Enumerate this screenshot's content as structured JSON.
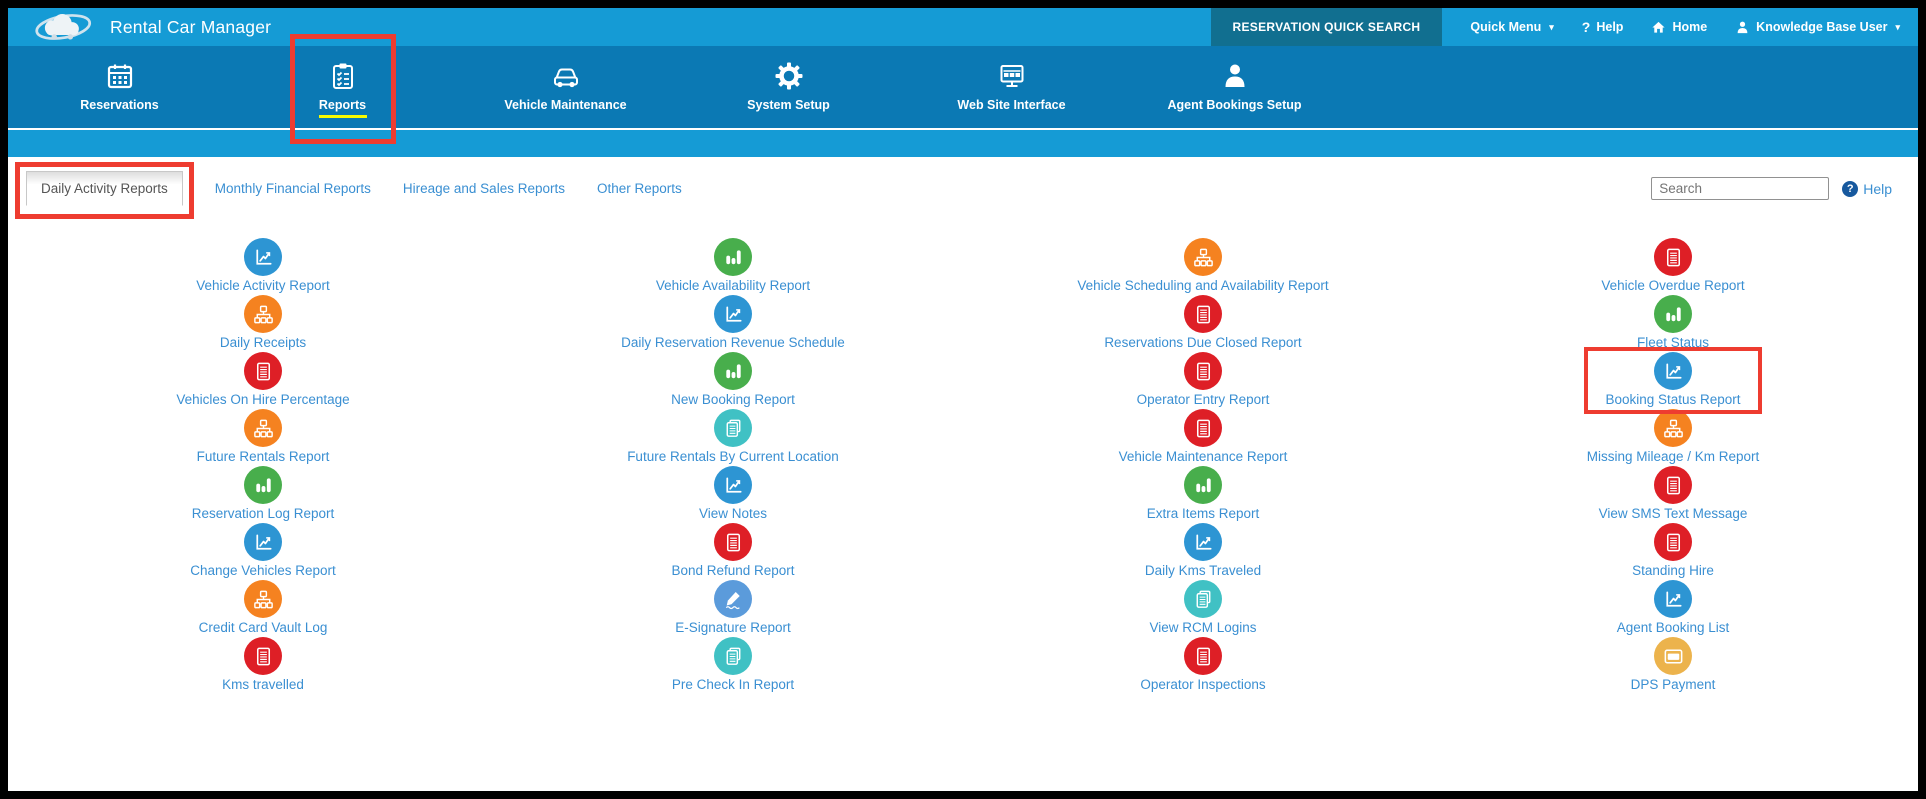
{
  "header": {
    "app_title": "Rental Car Manager",
    "quick_search_label": "RESERVATION QUICK SEARCH",
    "quick_menu_label": "Quick Menu",
    "help_label": "Help",
    "home_label": "Home",
    "user_label": "Knowledge Base User"
  },
  "nav": {
    "items": [
      {
        "label": "Reservations",
        "icon": "calendar",
        "active": false,
        "annotated": false
      },
      {
        "label": "Reports",
        "icon": "clipboard",
        "active": true,
        "annotated": true
      },
      {
        "label": "Vehicle Maintenance",
        "icon": "car",
        "active": false,
        "annotated": false
      },
      {
        "label": "System Setup",
        "icon": "gear",
        "active": false,
        "annotated": false
      },
      {
        "label": "Web Site Interface",
        "icon": "monitor",
        "active": false,
        "annotated": false
      },
      {
        "label": "Agent Bookings Setup",
        "icon": "agent",
        "active": false,
        "annotated": false
      }
    ]
  },
  "tabs": {
    "items": [
      {
        "label": "Daily Activity Reports",
        "active": true,
        "annotated": true
      },
      {
        "label": "Monthly Financial Reports",
        "active": false,
        "annotated": false
      },
      {
        "label": "Hireage and Sales Reports",
        "active": false,
        "annotated": false
      },
      {
        "label": "Other Reports",
        "active": false,
        "annotated": false
      }
    ],
    "search_placeholder": "Search",
    "help_label": "Help"
  },
  "colors": {
    "header_cyan": "#159bd5",
    "nav_blue": "#0b79b4",
    "quick_search_teal": "#116f90",
    "annotation_red": "#ee3c30",
    "active_underline_yellow": "#f8fb00",
    "link_blue": "#3a8fd2",
    "icon_blue": "#2d95d3",
    "icon_green": "#48ae4c",
    "icon_orange": "#f58220",
    "icon_red": "#de1f26",
    "icon_teal": "#40c1c4",
    "icon_lightblue": "#5b9bdb",
    "icon_amber": "#ecb34c"
  },
  "reports": [
    {
      "label": "Vehicle Activity Report",
      "icon": "line-chart",
      "color": "icon_blue",
      "annotated": false
    },
    {
      "label": "Vehicle Availability Report",
      "icon": "bar-chart",
      "color": "icon_green",
      "annotated": false
    },
    {
      "label": "Vehicle Scheduling and Availability Report",
      "icon": "sitemap",
      "color": "icon_orange",
      "annotated": false
    },
    {
      "label": "Vehicle Overdue Report",
      "icon": "document",
      "color": "icon_red",
      "annotated": false
    },
    {
      "label": "Daily Receipts",
      "icon": "sitemap",
      "color": "icon_orange",
      "annotated": false
    },
    {
      "label": "Daily Reservation Revenue Schedule",
      "icon": "line-chart",
      "color": "icon_blue",
      "annotated": false
    },
    {
      "label": "Reservations Due Closed Report",
      "icon": "document",
      "color": "icon_red",
      "annotated": false
    },
    {
      "label": "Fleet Status",
      "icon": "bar-chart",
      "color": "icon_green",
      "annotated": false
    },
    {
      "label": "Vehicles On Hire Percentage",
      "icon": "document",
      "color": "icon_red",
      "annotated": false
    },
    {
      "label": "New Booking Report",
      "icon": "bar-chart",
      "color": "icon_green",
      "annotated": false
    },
    {
      "label": "Operator Entry Report",
      "icon": "document",
      "color": "icon_red",
      "annotated": false
    },
    {
      "label": "Booking Status Report",
      "icon": "line-chart",
      "color": "icon_blue",
      "annotated": true
    },
    {
      "label": "Future Rentals Report",
      "icon": "sitemap",
      "color": "icon_orange",
      "annotated": false
    },
    {
      "label": "Future Rentals By Current Location",
      "icon": "pages",
      "color": "icon_teal",
      "annotated": false
    },
    {
      "label": "Vehicle Maintenance Report",
      "icon": "document",
      "color": "icon_red",
      "annotated": false
    },
    {
      "label": "Missing Mileage / Km Report",
      "icon": "sitemap",
      "color": "icon_orange",
      "annotated": false
    },
    {
      "label": "Reservation Log Report",
      "icon": "bar-chart",
      "color": "icon_green",
      "annotated": false
    },
    {
      "label": "View Notes",
      "icon": "line-chart",
      "color": "icon_blue",
      "annotated": false
    },
    {
      "label": "Extra Items Report",
      "icon": "bar-chart",
      "color": "icon_green",
      "annotated": false
    },
    {
      "label": "View SMS Text Message",
      "icon": "document",
      "color": "icon_red",
      "annotated": false
    },
    {
      "label": "Change Vehicles Report",
      "icon": "line-chart",
      "color": "icon_blue",
      "annotated": false
    },
    {
      "label": "Bond Refund Report",
      "icon": "document",
      "color": "icon_red",
      "annotated": false
    },
    {
      "label": "Daily Kms Traveled",
      "icon": "line-chart",
      "color": "icon_blue",
      "annotated": false
    },
    {
      "label": "Standing Hire",
      "icon": "document",
      "color": "icon_red",
      "annotated": false
    },
    {
      "label": "Credit Card Vault Log",
      "icon": "sitemap",
      "color": "icon_orange",
      "annotated": false
    },
    {
      "label": "E-Signature Report",
      "icon": "signature",
      "color": "icon_lightblue",
      "annotated": false
    },
    {
      "label": "View RCM Logins",
      "icon": "pages",
      "color": "icon_teal",
      "annotated": false
    },
    {
      "label": "Agent Booking List",
      "icon": "line-chart",
      "color": "icon_blue",
      "annotated": false
    },
    {
      "label": "Kms travelled",
      "icon": "document",
      "color": "icon_red",
      "annotated": false
    },
    {
      "label": "Pre Check In Report",
      "icon": "pages",
      "color": "icon_teal",
      "annotated": false
    },
    {
      "label": "Operator Inspections",
      "icon": "document",
      "color": "icon_red",
      "annotated": false
    },
    {
      "label": "DPS Payment",
      "icon": "card",
      "color": "icon_amber",
      "annotated": false
    }
  ]
}
